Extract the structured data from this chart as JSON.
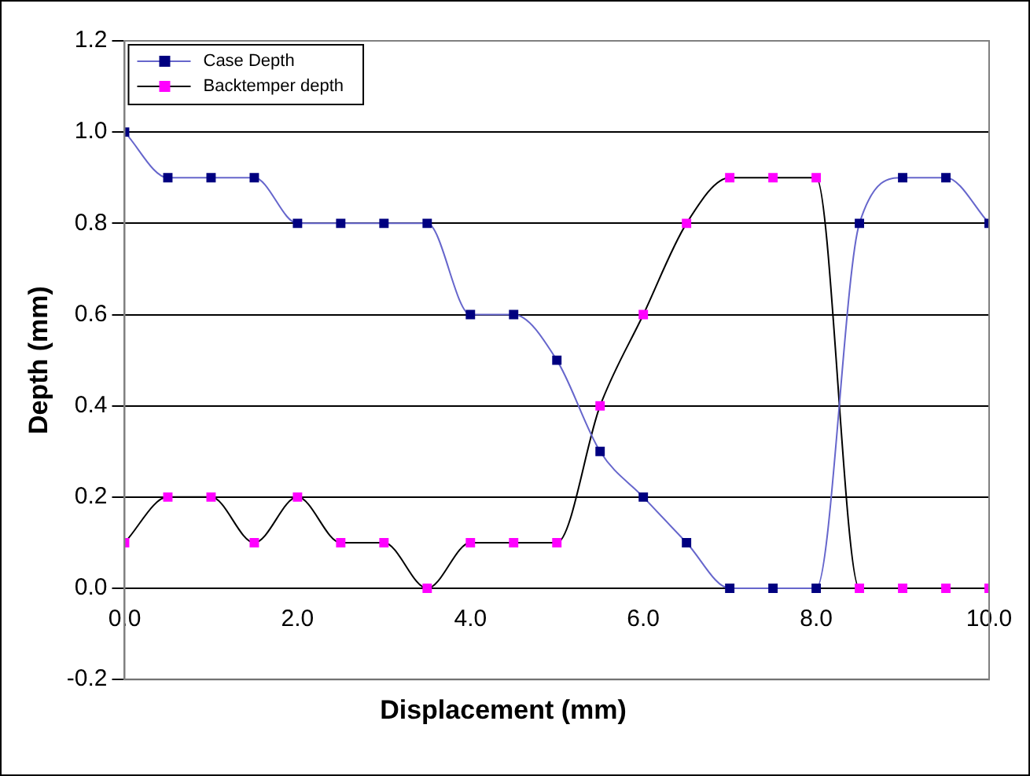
{
  "chart_data": {
    "type": "line",
    "xlabel": "Displacement (mm)",
    "ylabel": "Depth (mm)",
    "x": [
      0,
      0.5,
      1,
      1.5,
      2,
      2.5,
      3,
      3.5,
      4,
      4.5,
      5,
      5.5,
      6,
      6.5,
      7,
      7.5,
      8,
      8.5,
      9,
      9.5,
      10
    ],
    "series": [
      {
        "name": "Case Depth",
        "color": "#6666cc",
        "colors": [
          "#000080",
          "#000080",
          "#000080",
          "#000080",
          "#000080",
          "#000080",
          "#000080",
          "#000080",
          "#000080",
          "#000080",
          "#000080",
          "#000080",
          "#000080",
          "#000080",
          "#000080",
          "#000080",
          "#000080",
          "#000080",
          "#000080",
          "#000080",
          "#000080"
        ],
        "values": [
          1.0,
          0.9,
          0.9,
          0.9,
          0.8,
          0.8,
          0.8,
          0.8,
          0.6,
          0.6,
          0.5,
          0.3,
          0.2,
          0.1,
          0.0,
          0.0,
          0.0,
          0.8,
          0.9,
          0.9,
          0.8
        ]
      },
      {
        "name": "Backtemper depth",
        "color": "#000000",
        "colors": [
          "#ff00ff",
          "#ff00ff",
          "#ff00ff",
          "#ff00ff",
          "#ff00ff",
          "#ff00ff",
          "#ff00ff",
          "#ff00ff",
          "#ff00ff",
          "#ff00ff",
          "#ff00ff",
          "#ff00ff",
          "#ff00ff",
          "#ff00ff",
          "#ff00ff",
          "#ff00ff",
          "#ff00ff",
          "#ff00ff",
          "#ff00ff",
          "#ff00ff",
          "#ff00ff"
        ],
        "values": [
          0.1,
          0.2,
          0.2,
          0.1,
          0.2,
          0.1,
          0.1,
          0.0,
          0.1,
          0.1,
          0.1,
          0.4,
          0.6,
          0.8,
          0.9,
          0.9,
          0.9,
          0.0,
          0.0,
          0.0,
          0.0
        ]
      }
    ],
    "xlim": [
      0,
      10
    ],
    "xticks": [
      {
        "value": 0,
        "label": "0.0"
      },
      {
        "value": 2,
        "label": "2.0"
      },
      {
        "value": 4,
        "label": "4.0"
      },
      {
        "value": 6,
        "label": "6.0"
      },
      {
        "value": 8,
        "label": "8.0"
      },
      {
        "value": 10,
        "label": "10.0"
      }
    ],
    "ylim": [
      -0.2,
      1.2
    ],
    "yticks": [
      {
        "value": -0.2,
        "label": "-0.2"
      },
      {
        "value": 0,
        "label": "0.0"
      },
      {
        "value": 0.2,
        "label": "0.2"
      },
      {
        "value": 0.4,
        "label": "0.4"
      },
      {
        "value": 0.6,
        "label": "0.6"
      },
      {
        "value": 0.8,
        "label": "0.8"
      },
      {
        "value": 1.0,
        "label": "1.0"
      },
      {
        "value": 1.2,
        "label": "1.2"
      }
    ],
    "grid": "y",
    "legend": "top left",
    "marker": "square",
    "line_style": "solid"
  }
}
